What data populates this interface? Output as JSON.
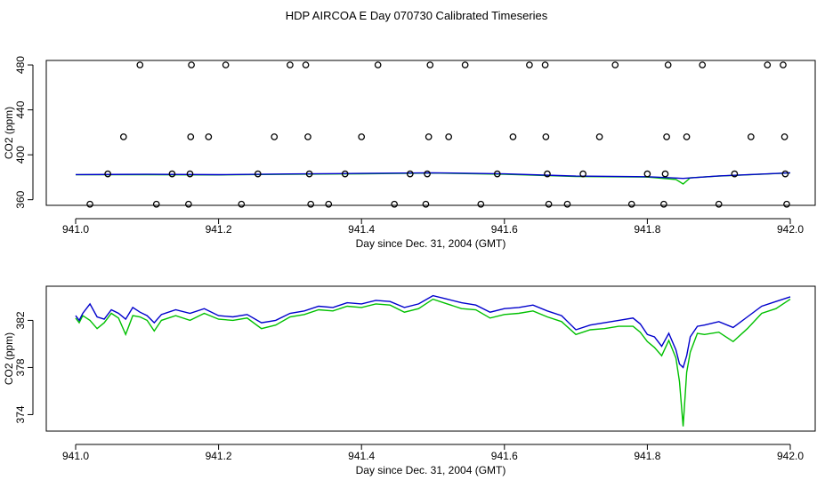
{
  "title": "HDP AIRCOA E  Day 070730  Calibrated Timeseries",
  "colors": {
    "green_series": "#00c000",
    "blue_series": "#0000cc",
    "points": "#000000"
  },
  "chart_data": [
    {
      "type": "scatter",
      "xlabel": "Day since Dec. 31, 2004 (GMT)",
      "ylabel": "CO2 (ppm)",
      "xlim": [
        941.0,
        942.0
      ],
      "ylim": [
        355,
        484
      ],
      "x_ticks": [
        "941.0",
        "941.2",
        "941.4",
        "941.6",
        "941.8",
        "942.0"
      ],
      "y_ticks": [
        "360",
        "400",
        "440",
        "480"
      ],
      "grid": false,
      "points": [
        {
          "x": 941.02,
          "y": 356
        },
        {
          "x": 941.045,
          "y": 383
        },
        {
          "x": 941.067,
          "y": 416
        },
        {
          "x": 941.09,
          "y": 480
        },
        {
          "x": 941.113,
          "y": 356
        },
        {
          "x": 941.135,
          "y": 383
        },
        {
          "x": 941.158,
          "y": 356
        },
        {
          "x": 941.16,
          "y": 383
        },
        {
          "x": 941.161,
          "y": 416
        },
        {
          "x": 941.162,
          "y": 480
        },
        {
          "x": 941.186,
          "y": 416
        },
        {
          "x": 941.21,
          "y": 480
        },
        {
          "x": 941.232,
          "y": 356
        },
        {
          "x": 941.255,
          "y": 383
        },
        {
          "x": 941.278,
          "y": 416
        },
        {
          "x": 941.3,
          "y": 480
        },
        {
          "x": 941.322,
          "y": 480
        },
        {
          "x": 941.325,
          "y": 416
        },
        {
          "x": 941.327,
          "y": 383
        },
        {
          "x": 941.329,
          "y": 356
        },
        {
          "x": 941.354,
          "y": 356
        },
        {
          "x": 941.377,
          "y": 383
        },
        {
          "x": 941.4,
          "y": 416
        },
        {
          "x": 941.423,
          "y": 480
        },
        {
          "x": 941.446,
          "y": 356
        },
        {
          "x": 941.468,
          "y": 383
        },
        {
          "x": 941.49,
          "y": 356
        },
        {
          "x": 941.492,
          "y": 383
        },
        {
          "x": 941.494,
          "y": 416
        },
        {
          "x": 941.496,
          "y": 480
        },
        {
          "x": 941.522,
          "y": 416
        },
        {
          "x": 941.545,
          "y": 480
        },
        {
          "x": 941.567,
          "y": 356
        },
        {
          "x": 941.59,
          "y": 383
        },
        {
          "x": 941.612,
          "y": 416
        },
        {
          "x": 941.635,
          "y": 480
        },
        {
          "x": 941.657,
          "y": 480
        },
        {
          "x": 941.658,
          "y": 416
        },
        {
          "x": 941.66,
          "y": 383
        },
        {
          "x": 941.662,
          "y": 356
        },
        {
          "x": 941.688,
          "y": 356
        },
        {
          "x": 941.71,
          "y": 383
        },
        {
          "x": 941.733,
          "y": 416
        },
        {
          "x": 941.755,
          "y": 480
        },
        {
          "x": 941.778,
          "y": 356
        },
        {
          "x": 941.8,
          "y": 383
        },
        {
          "x": 941.823,
          "y": 356
        },
        {
          "x": 941.825,
          "y": 383
        },
        {
          "x": 941.827,
          "y": 416
        },
        {
          "x": 941.829,
          "y": 480
        },
        {
          "x": 941.855,
          "y": 416
        },
        {
          "x": 941.877,
          "y": 480
        },
        {
          "x": 941.9,
          "y": 356
        },
        {
          "x": 941.922,
          "y": 383
        },
        {
          "x": 941.945,
          "y": 416
        },
        {
          "x": 941.968,
          "y": 480
        },
        {
          "x": 941.99,
          "y": 480
        },
        {
          "x": 941.992,
          "y": 416
        },
        {
          "x": 941.993,
          "y": 383
        },
        {
          "x": 941.995,
          "y": 356
        }
      ],
      "series": [
        {
          "name": "",
          "x": [
            941.0,
            941.1,
            941.2,
            941.3,
            941.4,
            941.5,
            941.6,
            941.7,
            941.8,
            941.84,
            941.85,
            941.86,
            941.9,
            942.0
          ],
          "y": [
            382.2,
            382.2,
            382.1,
            382.6,
            383.1,
            383.7,
            382.6,
            380.7,
            380.2,
            378.0,
            374.0,
            379.5,
            381.0,
            383.8
          ]
        },
        {
          "name": "",
          "x": [
            941.0,
            941.1,
            941.2,
            941.3,
            941.4,
            941.5,
            941.6,
            941.7,
            941.8,
            941.85,
            941.9,
            942.0
          ],
          "y": [
            382.4,
            382.6,
            382.3,
            382.9,
            383.4,
            384.0,
            383.0,
            381.0,
            380.5,
            379.0,
            381.2,
            384.0
          ]
        }
      ]
    },
    {
      "type": "line",
      "xlabel": "Day since Dec. 31, 2004 (GMT)",
      "ylabel": "CO2 (ppm)",
      "xlim": [
        941.0,
        942.0
      ],
      "ylim": [
        372.6,
        384.9
      ],
      "x_ticks": [
        "941.0",
        "941.2",
        "941.4",
        "941.6",
        "941.8",
        "942.0"
      ],
      "y_ticks": [
        "374",
        "378",
        "382"
      ],
      "grid": false,
      "series": [
        {
          "name": "",
          "x": [
            941.0,
            941.005,
            941.01,
            941.02,
            941.03,
            941.04,
            941.05,
            941.06,
            941.07,
            941.08,
            941.09,
            941.1,
            941.11,
            941.12,
            941.14,
            941.16,
            941.18,
            941.2,
            941.22,
            941.24,
            941.26,
            941.28,
            941.3,
            941.32,
            941.34,
            941.36,
            941.38,
            941.4,
            941.42,
            941.44,
            941.46,
            941.48,
            941.5,
            941.52,
            941.54,
            941.56,
            941.58,
            941.6,
            941.62,
            941.64,
            941.66,
            941.68,
            941.7,
            941.72,
            941.74,
            941.76,
            941.78,
            941.79,
            941.8,
            941.81,
            941.82,
            941.83,
            941.84,
            941.845,
            941.85,
            941.855,
            941.86,
            941.87,
            941.88,
            941.9,
            941.92,
            941.94,
            941.96,
            941.98,
            942.0
          ],
          "y": [
            382.2,
            381.8,
            382.4,
            382.0,
            381.3,
            381.8,
            382.6,
            382.2,
            380.8,
            382.4,
            382.3,
            382.0,
            381.1,
            382.0,
            382.4,
            382.0,
            382.6,
            382.1,
            382.0,
            382.2,
            381.3,
            381.6,
            382.3,
            382.5,
            382.9,
            382.8,
            383.2,
            383.1,
            383.4,
            383.3,
            382.7,
            383.0,
            383.8,
            383.4,
            383.0,
            382.9,
            382.2,
            382.5,
            382.6,
            382.8,
            382.3,
            381.9,
            380.8,
            381.2,
            381.3,
            381.5,
            381.5,
            381.0,
            380.2,
            379.7,
            379.0,
            380.3,
            378.8,
            376.8,
            373.0,
            377.6,
            379.3,
            380.9,
            380.8,
            381.0,
            380.2,
            381.3,
            382.6,
            383.0,
            383.8
          ]
        },
        {
          "name": "",
          "x": [
            941.0,
            941.005,
            941.01,
            941.02,
            941.03,
            941.04,
            941.05,
            941.06,
            941.07,
            941.08,
            941.09,
            941.1,
            941.11,
            941.12,
            941.14,
            941.16,
            941.18,
            941.2,
            941.22,
            941.24,
            941.26,
            941.28,
            941.3,
            941.32,
            941.34,
            941.36,
            941.38,
            941.4,
            941.42,
            941.44,
            941.46,
            941.48,
            941.5,
            941.52,
            941.54,
            941.56,
            941.58,
            941.6,
            941.62,
            941.64,
            941.66,
            941.68,
            941.7,
            941.72,
            941.74,
            941.76,
            941.78,
            941.79,
            941.8,
            941.81,
            941.82,
            941.83,
            941.84,
            941.845,
            941.85,
            941.855,
            941.86,
            941.87,
            941.88,
            941.9,
            941.92,
            941.94,
            941.96,
            941.98,
            942.0
          ],
          "y": [
            382.4,
            382.0,
            382.6,
            383.4,
            382.3,
            382.1,
            382.9,
            382.6,
            382.1,
            383.1,
            382.7,
            382.4,
            381.8,
            382.5,
            382.9,
            382.6,
            383.0,
            382.4,
            382.3,
            382.5,
            381.8,
            382.0,
            382.6,
            382.8,
            383.2,
            383.1,
            383.5,
            383.4,
            383.7,
            383.6,
            383.1,
            383.4,
            384.1,
            383.8,
            383.5,
            383.3,
            382.7,
            383.0,
            383.1,
            383.3,
            382.8,
            382.4,
            381.2,
            381.6,
            381.8,
            382.0,
            382.2,
            381.7,
            380.8,
            380.6,
            379.8,
            380.9,
            379.5,
            378.3,
            378.0,
            379.0,
            380.6,
            381.5,
            381.6,
            381.9,
            381.4,
            382.3,
            383.2,
            383.6,
            384.0
          ]
        }
      ]
    }
  ]
}
